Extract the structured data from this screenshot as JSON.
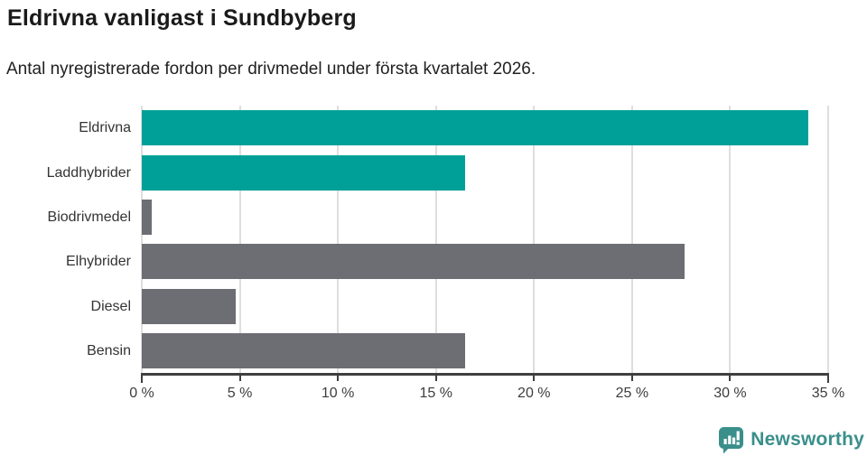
{
  "header": {
    "title": "Eldrivna vanligast i Sundbyberg",
    "subtitle": "Antal nyregistrerade fordon per drivmedel under första kvartalet 2026."
  },
  "chart_data": {
    "type": "bar",
    "orientation": "horizontal",
    "title": "Eldrivna vanligast i Sundbyberg",
    "subtitle": "Antal nyregistrerade fordon per drivmedel under första kvartalet 2026.",
    "categories": [
      "Eldrivna",
      "Laddhybrider",
      "Biodrivmedel",
      "Elhybrider",
      "Diesel",
      "Bensin"
    ],
    "values": [
      34.0,
      16.5,
      0.5,
      27.7,
      4.8,
      16.5
    ],
    "unit": "%",
    "xlim": [
      0,
      35
    ],
    "x_ticks": [
      0,
      5,
      10,
      15,
      20,
      25,
      30,
      35
    ],
    "x_tick_labels": [
      "0 %",
      "5 %",
      "10 %",
      "15 %",
      "20 %",
      "25 %",
      "30 %",
      "35 %"
    ],
    "bar_colors": [
      "#00a099",
      "#00a099",
      "#6d6d74",
      "#6d6d74",
      "#6d6d74",
      "#6d6d74"
    ],
    "colors": {
      "highlight": "#00a099",
      "default": "#6d6d74",
      "grid": "#dedede",
      "axis": "#3f3f3f"
    },
    "grid": true,
    "legend": "none"
  },
  "footer": {
    "brand": "Newsworthy",
    "brand_color": "#3a8f8b"
  }
}
